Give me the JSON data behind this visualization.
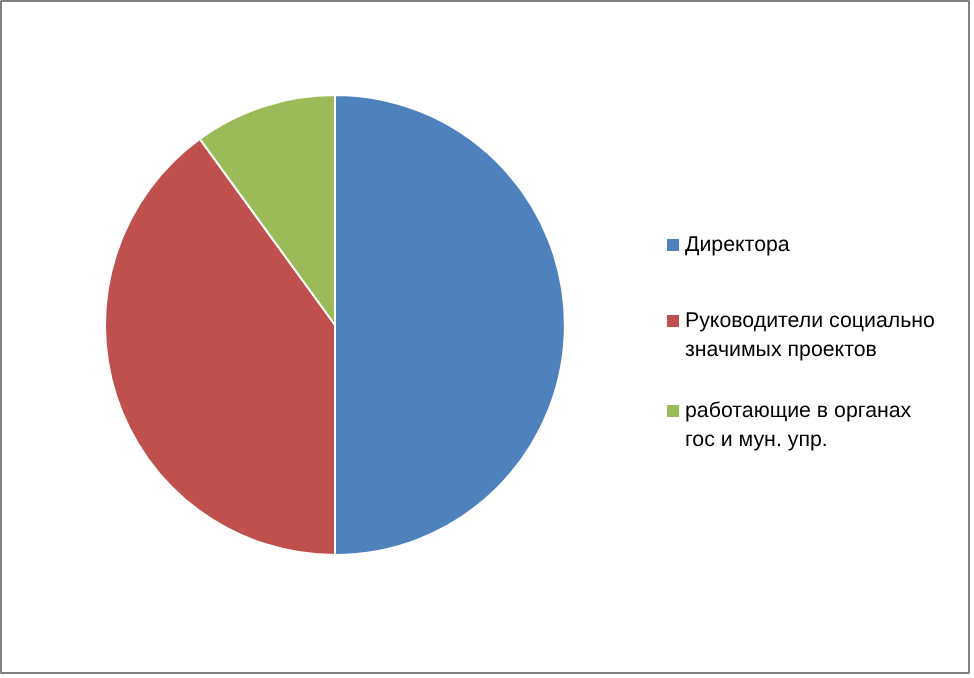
{
  "chart_data": {
    "type": "pie",
    "categories": [
      "Директора",
      "Руководители социально значимых проектов",
      "работающие в органах гос и мун. упр."
    ],
    "values": [
      50,
      40,
      10
    ],
    "colors": [
      "#4f81bd",
      "#c0504d",
      "#9bbb59"
    ],
    "legend": "right"
  }
}
